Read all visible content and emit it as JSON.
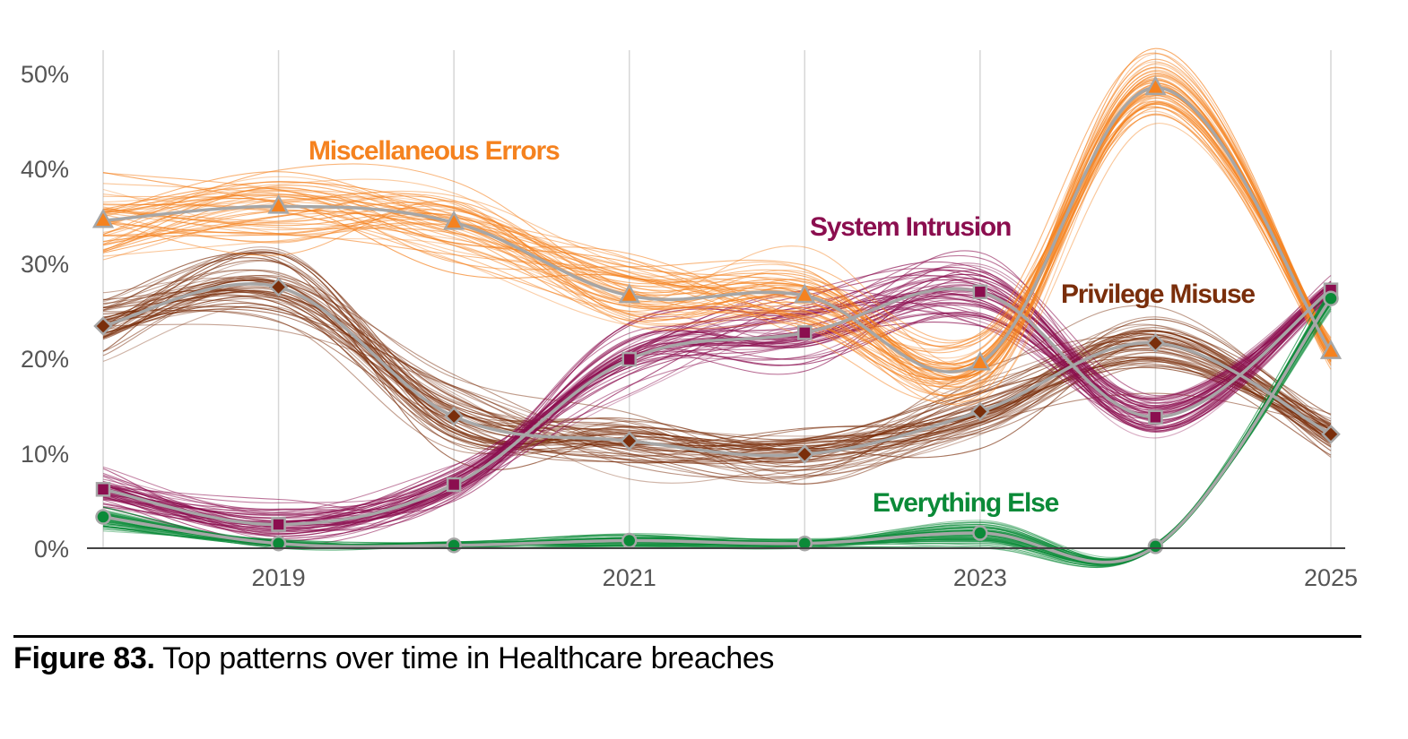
{
  "figure": {
    "number_label": "Figure 83.",
    "title": "Top patterns over time in Healthcare breaches"
  },
  "chart_data": {
    "type": "line",
    "title": "Top patterns over time in Healthcare breaches",
    "xlabel": "",
    "ylabel": "",
    "x": [
      2018,
      2019,
      2020,
      2021,
      2022,
      2023,
      2024,
      2025
    ],
    "xlim": [
      2018,
      2025
    ],
    "ylim": [
      0,
      50
    ],
    "x_tick_values": [
      2019,
      2021,
      2023,
      2025
    ],
    "x_tick_labels": [
      "2019",
      "2021",
      "2023",
      "2025"
    ],
    "y_tick_values": [
      0,
      10,
      20,
      30,
      40,
      50
    ],
    "y_tick_labels": [
      "0%",
      "10%",
      "20%",
      "30%",
      "40%",
      "50%"
    ],
    "grid": "vertical",
    "legend": "inline labels",
    "series": [
      {
        "name": "Miscellaneous Errors",
        "color": "#F5821F",
        "marker": "triangle",
        "values": [
          34.5,
          36.0,
          34.3,
          26.6,
          26.6,
          19.5,
          48.5,
          20.7
        ]
      },
      {
        "name": "Privilege Misuse",
        "color": "#7A2E0B",
        "marker": "diamond",
        "values": [
          23.4,
          27.5,
          13.9,
          11.3,
          9.9,
          14.4,
          21.6,
          12.0
        ]
      },
      {
        "name": "System Intrusion",
        "color": "#8B0E4F",
        "marker": "square",
        "values": [
          6.2,
          2.5,
          6.7,
          19.9,
          22.7,
          27.0,
          13.8,
          27.2
        ]
      },
      {
        "name": "Everything Else",
        "color": "#0B8A38",
        "marker": "circle",
        "values": [
          3.3,
          0.5,
          0.3,
          0.8,
          0.5,
          1.6,
          0.2,
          26.3
        ]
      }
    ]
  }
}
